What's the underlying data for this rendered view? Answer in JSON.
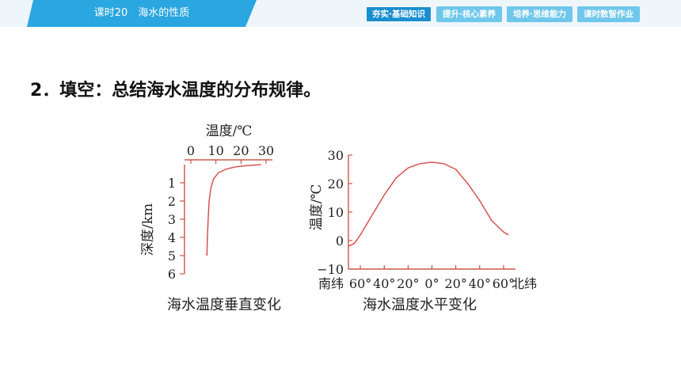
{
  "header": {
    "lesson_title": "课时20　海水的性质",
    "tabs": [
      {
        "label": "夯实·基础知识",
        "active": true
      },
      {
        "label": "提升·核心素养",
        "active": false
      },
      {
        "label": "培养·思维能力",
        "active": false
      },
      {
        "label": "课时数智作业",
        "active": false
      }
    ]
  },
  "question": "2．填空：总结海水温度的分布规律。",
  "colors": {
    "curve": "#d9534f",
    "banner": "#2aa6e0"
  },
  "chart_data": [
    {
      "type": "line",
      "caption": "海水温度垂直变化",
      "xlabel": "温度/℃",
      "ylabel": "深度/km",
      "x_ticks": [
        0,
        10,
        20,
        30
      ],
      "y_ticks": [
        1,
        2,
        3,
        4,
        5,
        6
      ],
      "xlim": [
        0,
        30
      ],
      "ylim": [
        0,
        6
      ],
      "x_axis_position": "top",
      "series": [
        {
          "points": [
            [
              28,
              0
            ],
            [
              26,
              0.02
            ],
            [
              22,
              0.06
            ],
            [
              18,
              0.12
            ],
            [
              14,
              0.25
            ],
            [
              11,
              0.45
            ],
            [
              9,
              0.8
            ],
            [
              8,
              1.3
            ],
            [
              7.3,
              2
            ],
            [
              6.9,
              3
            ],
            [
              6.6,
              4
            ],
            [
              6.4,
              5
            ],
            [
              6.3,
              4.9
            ]
          ]
        }
      ]
    },
    {
      "type": "line",
      "caption": "海水温度水平变化",
      "xlabel": "",
      "ylabel": "温度/℃",
      "x_start_label": "南纬",
      "x_end_label": "北纬",
      "x_tick_labels": [
        "60°",
        "40°",
        "20°",
        "0°",
        "20°",
        "40°",
        "60°"
      ],
      "y_ticks": [
        -10,
        0,
        10,
        20,
        30
      ],
      "xlim": [
        -70,
        70
      ],
      "ylim": [
        -10,
        30
      ],
      "series": [
        {
          "points": [
            [
              -70,
              -2
            ],
            [
              -65,
              -1
            ],
            [
              -60,
              2
            ],
            [
              -50,
              9
            ],
            [
              -40,
              16
            ],
            [
              -30,
              22
            ],
            [
              -20,
              25.5
            ],
            [
              -10,
              27
            ],
            [
              0,
              27.5
            ],
            [
              10,
              27
            ],
            [
              20,
              25
            ],
            [
              30,
              20
            ],
            [
              40,
              14
            ],
            [
              50,
              7
            ],
            [
              60,
              3
            ],
            [
              64,
              2
            ]
          ]
        }
      ]
    }
  ]
}
